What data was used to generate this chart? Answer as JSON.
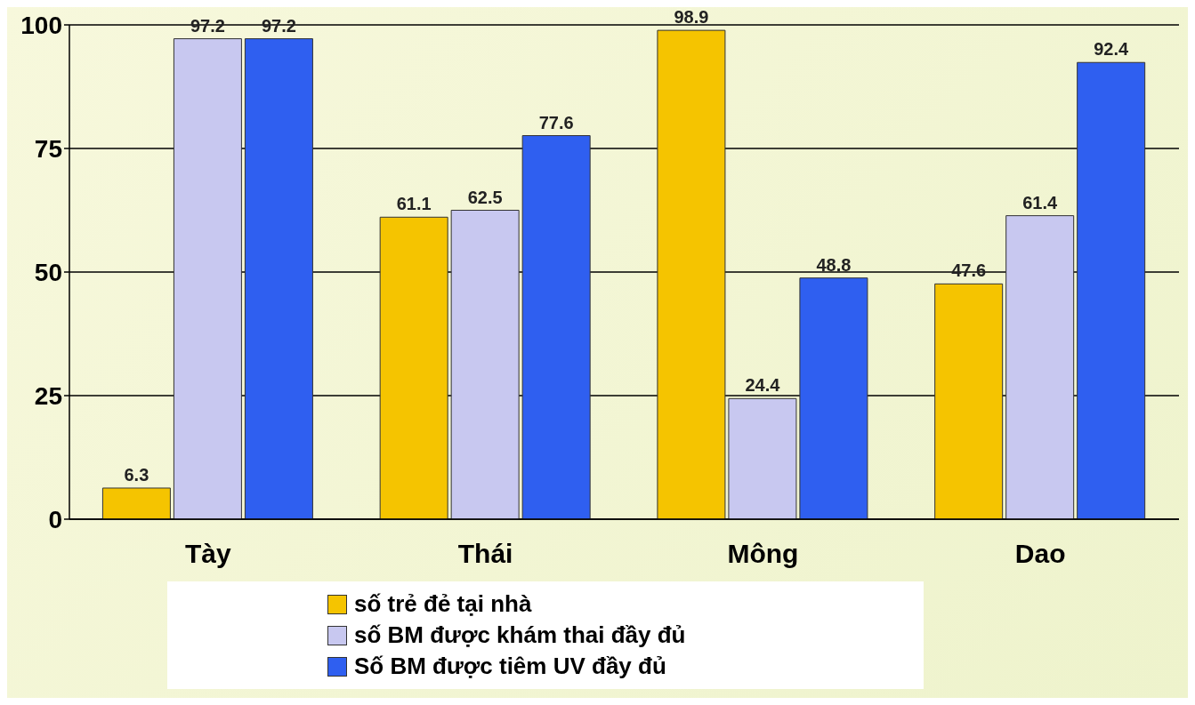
{
  "chart_data": {
    "type": "bar",
    "categories": [
      "Tày",
      "Thái",
      "Mông",
      "Dao"
    ],
    "series": [
      {
        "name": "số trẻ đẻ tại nhà",
        "color": "#f5c400",
        "values": [
          6.3,
          61.1,
          98.9,
          47.6
        ]
      },
      {
        "name": "số BM được khám thai đầy đủ",
        "color": "#c8c8f0",
        "values": [
          97.2,
          62.5,
          24.4,
          61.4
        ]
      },
      {
        "name": "Số BM được tiêm UV đầy đủ",
        "color": "#2f5ff0",
        "values": [
          97.2,
          77.6,
          48.8,
          92.4
        ]
      }
    ],
    "ylim": [
      0,
      100
    ],
    "yticks": [
      0,
      25,
      50,
      75,
      100
    ],
    "grid": "y",
    "legend": "bottom",
    "data_labels": true
  }
}
